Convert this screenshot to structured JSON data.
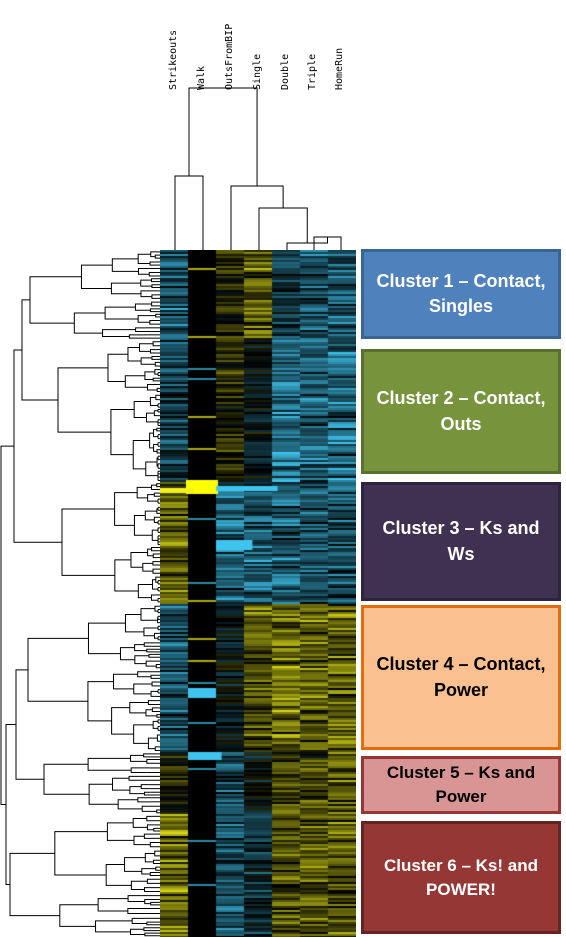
{
  "columns": [
    "Strikeouts",
    "Walk",
    "OutsFromBIP",
    "Single",
    "Double",
    "Triple",
    "HomeRun"
  ],
  "palette": {
    "low": "#3fc4ef",
    "mid": "#000000",
    "high": "#f2f21a"
  },
  "clusters": [
    {
      "label": "Cluster 1 – Contact, Singles",
      "fill": "#4f81bd",
      "border": "#3a6494",
      "text_color": "#ffffff"
    },
    {
      "label": "Cluster 2 – Contact, Outs",
      "fill": "#77933c",
      "border": "#5a7030",
      "text_color": "#ffffff"
    },
    {
      "label": "Cluster 3 – Ks and Ws",
      "fill": "#403151",
      "border": "#2e2340",
      "text_color": "#ffffff"
    },
    {
      "label": "Cluster 4 – Contact, Power",
      "fill": "#fac090",
      "border": "#e46c0a",
      "text_color": "#000000"
    },
    {
      "label": "Cluster 5 – Ks and Power",
      "fill": "#d99594",
      "border": "#953735",
      "text_color": "#000000"
    },
    {
      "label": "Cluster 6 – Ks! and POWER!",
      "fill": "#953735",
      "border": "#632423",
      "text_color": "#ffffff"
    }
  ]
}
